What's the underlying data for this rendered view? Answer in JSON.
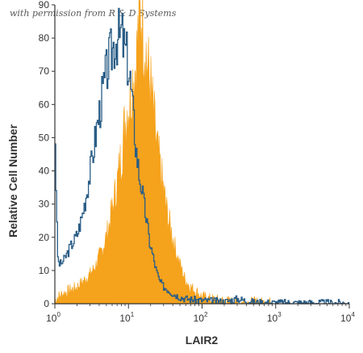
{
  "watermark": "with permission from R & D Systems",
  "chart_data": {
    "type": "area",
    "xlabel": "LAIR2",
    "ylabel": "Relative Cell Number",
    "x_scale": "log",
    "xlim": [
      1,
      10000
    ],
    "ylim": [
      0,
      90
    ],
    "y_ticks": [
      0,
      10,
      20,
      30,
      40,
      50,
      60,
      70,
      80,
      90
    ],
    "x_ticks": [
      {
        "value": 1,
        "base": "10",
        "exp": "0"
      },
      {
        "value": 10,
        "base": "10",
        "exp": "1"
      },
      {
        "value": 100,
        "base": "10",
        "exp": "2"
      },
      {
        "value": 1000,
        "base": "10",
        "exp": "3"
      },
      {
        "value": 10000,
        "base": "10",
        "exp": "4"
      }
    ],
    "grid": false,
    "colors": {
      "stained": "#f5a21c",
      "isotype": "#2a5d86",
      "axis": "#333333"
    },
    "series": [
      {
        "style": "outline",
        "x": [
          1.0,
          1.02,
          1.04,
          1.08,
          1.12,
          1.2,
          1.3,
          1.45,
          1.6,
          1.8,
          2.0,
          2.3,
          2.6,
          3.0,
          3.4,
          3.8,
          4.3,
          4.9,
          5.5,
          6.2,
          6.8,
          7.2,
          7.6,
          8.0,
          8.5,
          9.0,
          9.5,
          10.0,
          10.5,
          11.0,
          11.5,
          12.0,
          12.5,
          13.0,
          14.0,
          15.0,
          16.0,
          17.5,
          19.0,
          21.0,
          23.0,
          26.0,
          30.0,
          35.0,
          40.0,
          50.0,
          60.0,
          75.0,
          100.0,
          150.0,
          200.0,
          300.0,
          500.0,
          1000.0,
          10000.0
        ],
        "y": [
          50,
          42,
          28,
          15,
          12,
          12,
          13,
          15,
          17,
          19,
          21,
          26,
          32,
          40,
          48,
          55,
          62,
          69,
          74,
          78,
          80,
          81,
          80,
          82,
          78,
          76,
          74,
          70,
          67,
          62,
          56,
          52,
          47,
          44,
          38,
          35,
          30,
          25,
          19,
          15,
          11,
          7,
          5,
          4,
          3,
          2,
          1.5,
          1.2,
          1.0,
          0.8,
          0.6,
          1.5,
          0.4,
          0.3,
          0.2
        ]
      },
      {
        "style": "filled",
        "x": [
          1.0,
          1.1,
          1.3,
          1.6,
          2.0,
          2.5,
          3.0,
          3.5,
          4.0,
          4.5,
          5.0,
          5.5,
          6.0,
          6.5,
          7.0,
          7.5,
          8.0,
          8.5,
          9.0,
          9.5,
          10.0,
          10.5,
          11.0,
          11.5,
          12.0,
          12.5,
          13.0,
          13.5,
          14.0,
          14.5,
          15.0,
          15.5,
          16.0,
          16.5,
          17.0,
          18.0,
          19.0,
          20.0,
          21.0,
          22.0,
          23.0,
          24.0,
          25.0,
          27.0,
          29.0,
          31.0,
          33.0,
          36.0,
          40.0,
          45.0,
          50.0,
          55.0,
          60.0,
          70.0,
          80.0,
          90.0,
          100.0,
          120.0,
          150.0,
          200.0,
          300.0,
          500.0,
          1000.0
        ],
        "y": [
          1,
          2,
          3,
          4,
          5,
          7,
          9,
          11,
          14,
          17,
          20,
          24,
          28,
          32,
          36,
          40,
          45,
          50,
          54,
          58,
          60,
          62,
          65,
          68,
          70,
          72,
          75,
          80,
          84,
          86,
          88,
          85,
          82,
          80,
          78,
          72,
          68,
          65,
          60,
          56,
          52,
          48,
          45,
          40,
          36,
          32,
          28,
          24,
          20,
          15,
          12,
          9,
          7,
          5,
          4,
          3,
          2,
          1.5,
          1.0,
          0.6,
          0.3,
          0.2,
          0.1
        ]
      }
    ]
  }
}
